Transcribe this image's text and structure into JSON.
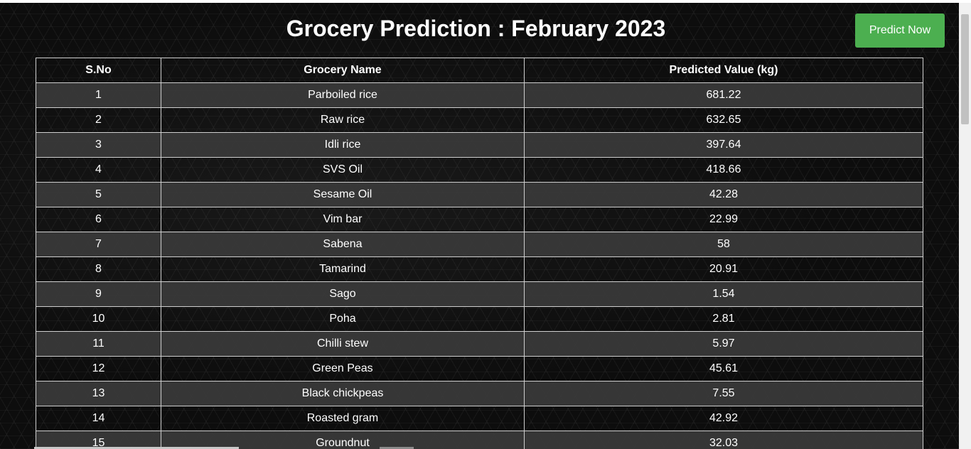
{
  "page": {
    "title": "Grocery Prediction : February 2023",
    "predict_button_label": "Predict Now",
    "accent_color": "#4caf50"
  },
  "table": {
    "headers": [
      "S.No",
      "Grocery Name",
      "Predicted Value (kg)"
    ],
    "rows": [
      {
        "sno": "1",
        "name": "Parboiled rice",
        "value": "681.22"
      },
      {
        "sno": "2",
        "name": "Raw rice",
        "value": "632.65"
      },
      {
        "sno": "3",
        "name": "Idli rice",
        "value": "397.64"
      },
      {
        "sno": "4",
        "name": "SVS Oil",
        "value": "418.66"
      },
      {
        "sno": "5",
        "name": "Sesame Oil",
        "value": "42.28"
      },
      {
        "sno": "6",
        "name": "Vim bar",
        "value": "22.99"
      },
      {
        "sno": "7",
        "name": "Sabena",
        "value": "58"
      },
      {
        "sno": "8",
        "name": "Tamarind",
        "value": "20.91"
      },
      {
        "sno": "9",
        "name": "Sago",
        "value": "1.54"
      },
      {
        "sno": "10",
        "name": "Poha",
        "value": "2.81"
      },
      {
        "sno": "11",
        "name": "Chilli stew",
        "value": "5.97"
      },
      {
        "sno": "12",
        "name": "Green Peas",
        "value": "45.61"
      },
      {
        "sno": "13",
        "name": "Black chickpeas",
        "value": "7.55"
      },
      {
        "sno": "14",
        "name": "Roasted gram",
        "value": "42.92"
      },
      {
        "sno": "15",
        "name": "Groundnut",
        "value": "32.03"
      }
    ]
  }
}
